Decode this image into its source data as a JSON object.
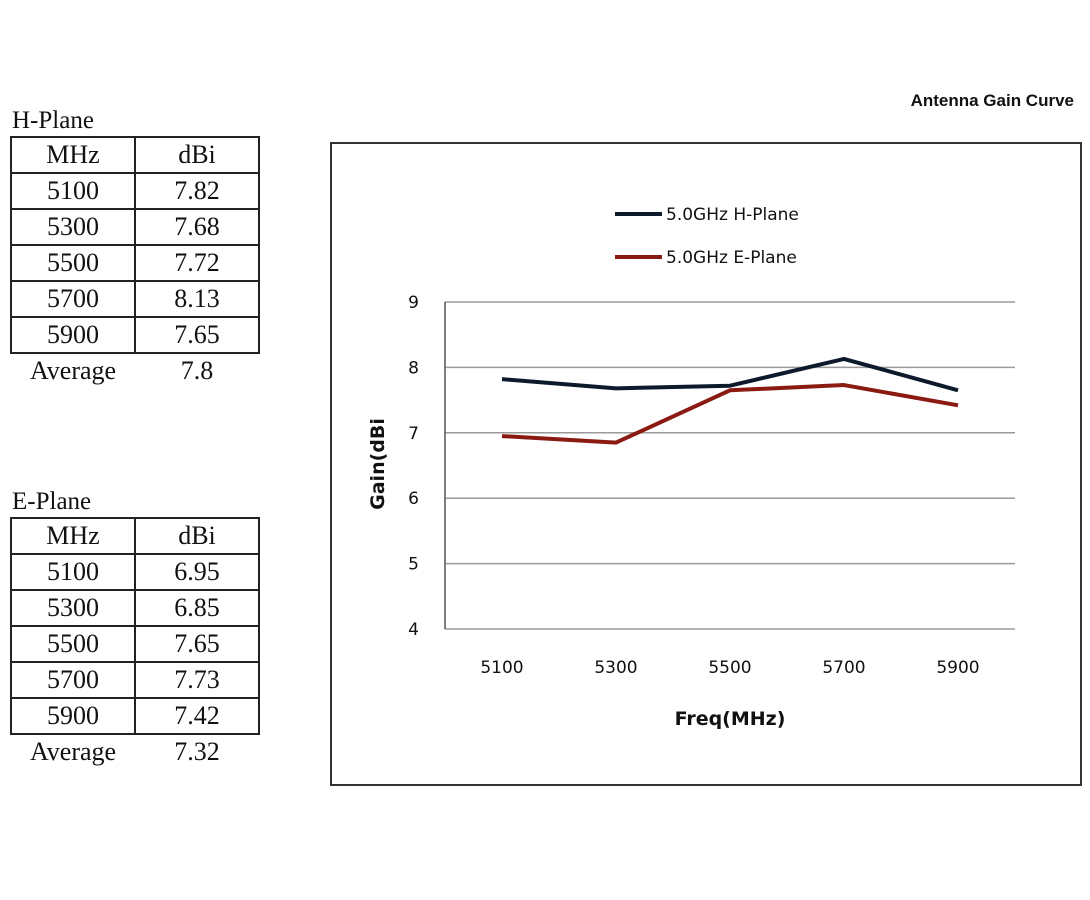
{
  "h_plane": {
    "caption": "H-Plane",
    "col_mhz": "MHz",
    "col_dbi": "dBi",
    "rows": [
      {
        "mhz": "5100",
        "dbi": "7.82"
      },
      {
        "mhz": "5300",
        "dbi": "7.68"
      },
      {
        "mhz": "5500",
        "dbi": "7.72"
      },
      {
        "mhz": "5700",
        "dbi": "8.13"
      },
      {
        "mhz": "5900",
        "dbi": "7.65"
      }
    ],
    "average_label": "Average",
    "average_value": "7.8"
  },
  "e_plane": {
    "caption": "E-Plane",
    "col_mhz": "MHz",
    "col_dbi": "dBi",
    "rows": [
      {
        "mhz": "5100",
        "dbi": "6.95"
      },
      {
        "mhz": "5300",
        "dbi": "6.85"
      },
      {
        "mhz": "5500",
        "dbi": "7.65"
      },
      {
        "mhz": "5700",
        "dbi": "7.73"
      },
      {
        "mhz": "5900",
        "dbi": "7.42"
      }
    ],
    "average_label": "Average",
    "average_value": "7.32"
  },
  "chart_data": {
    "type": "line",
    "title": "Antenna Gain Curve",
    "xlabel": "Freq(MHz)",
    "ylabel": "Gain(dBi",
    "categories": [
      "5100",
      "5300",
      "5500",
      "5700",
      "5900"
    ],
    "ylim": [
      4,
      9
    ],
    "yticks": [
      4,
      5,
      6,
      7,
      8,
      9
    ],
    "grid": true,
    "legend_position": "top",
    "series": [
      {
        "name": "5.0GHz H-Plane",
        "color": "#0d1a2b",
        "values": [
          7.82,
          7.68,
          7.72,
          8.13,
          7.65
        ]
      },
      {
        "name": "5.0GHz E-Plane",
        "color": "#8b1a12",
        "values": [
          6.95,
          6.85,
          7.65,
          7.73,
          7.42
        ]
      }
    ]
  }
}
